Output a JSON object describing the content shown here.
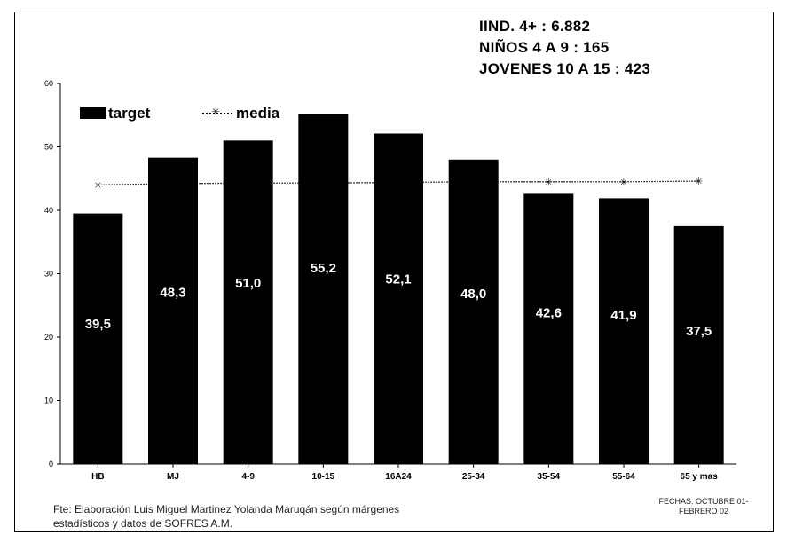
{
  "header": {
    "line1": "IIND. 4+ : 6.882",
    "line2": "NIÑOS 4 A 9 : 165",
    "line3": "JOVENES 10 A 15  : 423"
  },
  "legend": {
    "target_label": "target",
    "media_label": "media"
  },
  "footer": {
    "source_line1": "Fte: Elaboración Luis Miguel Martinez  Yolanda Maruqán según márgenes",
    "source_line2": "estadísticos y datos de SOFRES A.M.",
    "dates_line1": "FECHAS: OCTUBRE 01-",
    "dates_line2": "FEBRERO 02"
  },
  "colors": {
    "bar": "#000000",
    "bar_label": "#ffffff",
    "media_line": "#000000"
  },
  "chart_data": {
    "type": "bar",
    "categories": [
      "HB",
      "MJ",
      "4-9",
      "10-15",
      "16A24",
      "25-34",
      "35-54",
      "55-64",
      "65 y mas"
    ],
    "series": [
      {
        "name": "target",
        "type": "bar",
        "values": [
          39.5,
          48.3,
          51.0,
          55.2,
          52.1,
          48.0,
          42.6,
          41.9,
          37.5
        ],
        "labels": [
          "39,5",
          "48,3",
          "51,0",
          "55,2",
          "52,1",
          "48,0",
          "42,6",
          "41,9",
          "37,5"
        ]
      },
      {
        "name": "media",
        "type": "line",
        "values": [
          44.0,
          44.2,
          44.3,
          44.3,
          44.4,
          44.5,
          44.5,
          44.5,
          44.6
        ]
      }
    ],
    "ylim": [
      0,
      60
    ],
    "yticks": [
      0,
      10,
      20,
      30,
      40,
      50,
      60
    ],
    "xlabel": "",
    "ylabel": "",
    "legend_position": "top-left",
    "grid": false
  }
}
